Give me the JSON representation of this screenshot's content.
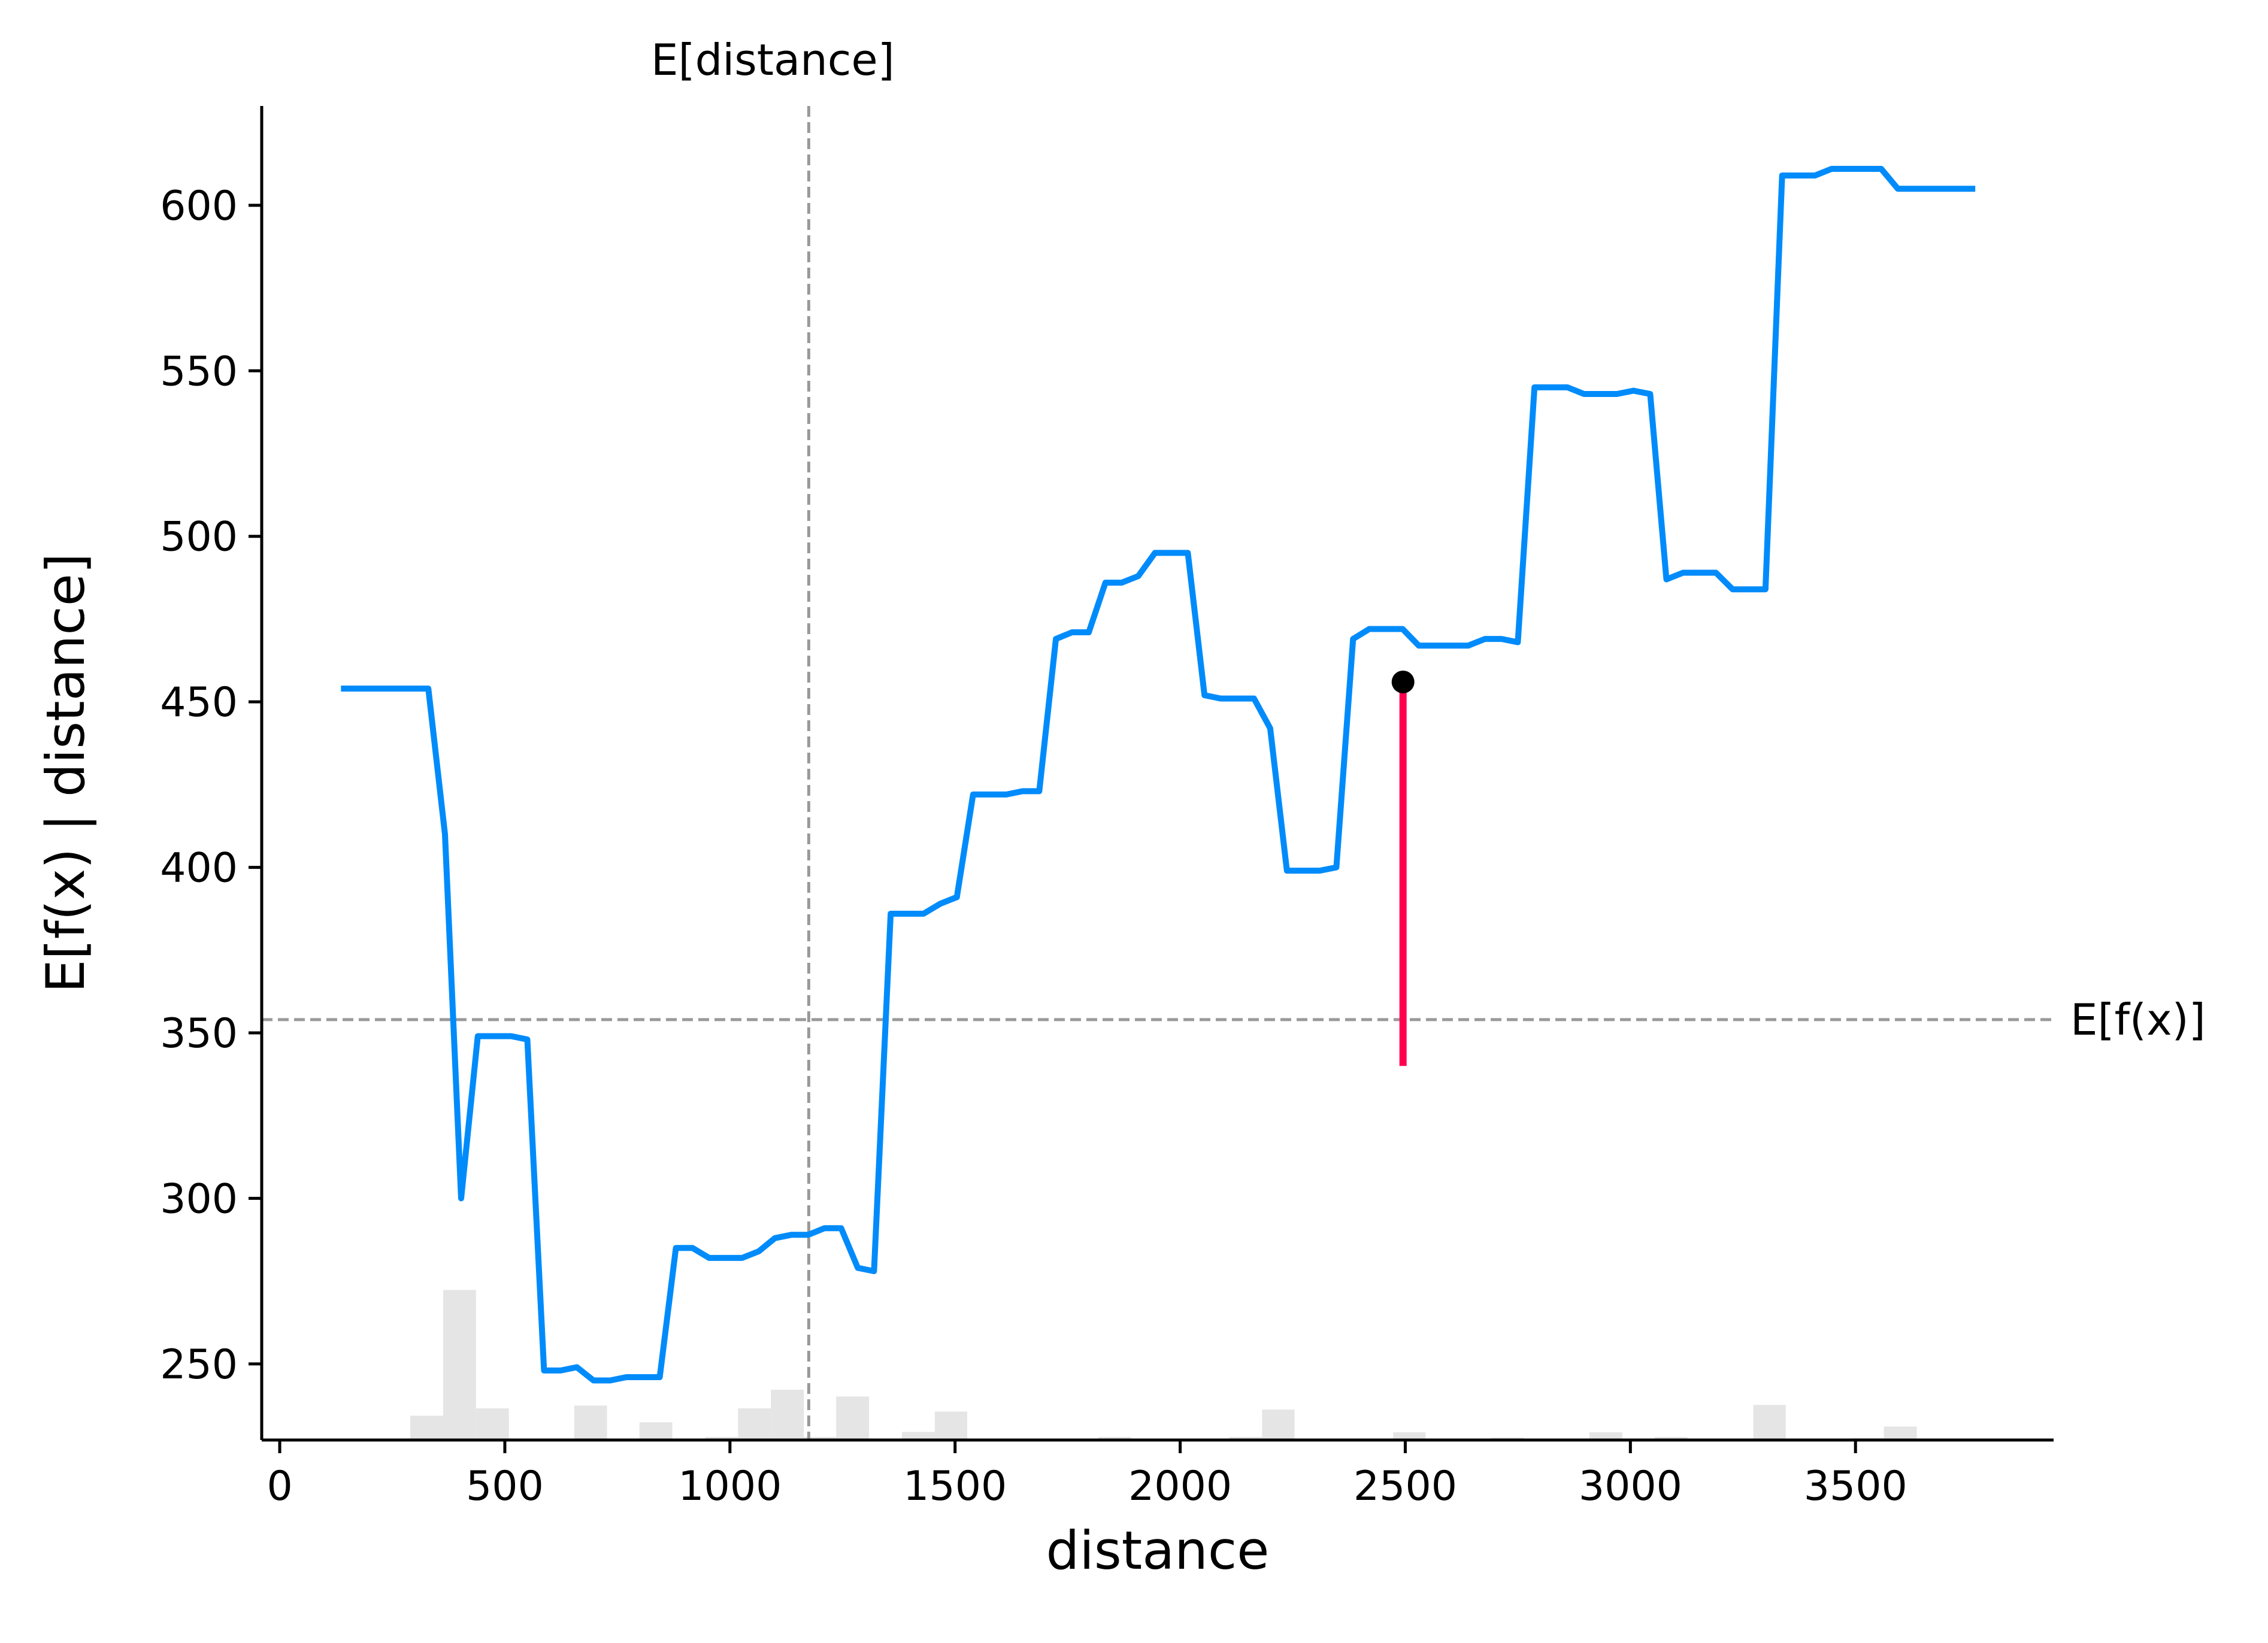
{
  "chart_data": {
    "type": "line",
    "xlabel": "distance",
    "ylabel": "E[f(x) | distance]",
    "xlim": [
      -40,
      3940
    ],
    "ylim": [
      227,
      630
    ],
    "x_ticks": [
      0,
      500,
      1000,
      1500,
      2000,
      2500,
      3000,
      3500
    ],
    "y_ticks": [
      250,
      300,
      350,
      400,
      450,
      500,
      550,
      600
    ],
    "grid": false,
    "reference_lines": {
      "expected_x": {
        "label": "E[distance]",
        "value": 1175
      },
      "expected_y": {
        "label": "E[f(x)]",
        "value": 354
      }
    },
    "series": [
      {
        "color": "#008bfb",
        "x": [
          136,
          330,
          367,
          403,
          440,
          477,
          514,
          550,
          587,
          624,
          660,
          697,
          734,
          770,
          807,
          844,
          880,
          917,
          954,
          990,
          1027,
          1064,
          1100,
          1137,
          1174,
          1210,
          1247,
          1284,
          1320,
          1357,
          1394,
          1430,
          1467,
          1504,
          1540,
          1577,
          1614,
          1650,
          1687,
          1724,
          1760,
          1797,
          1834,
          1870,
          1907,
          1944,
          1980,
          2017,
          2054,
          2090,
          2127,
          2164,
          2200,
          2237,
          2274,
          2310,
          2347,
          2384,
          2420,
          2457,
          2494,
          2530,
          2567,
          2604,
          2640,
          2677,
          2714,
          2750,
          2787,
          2824,
          2860,
          2897,
          2934,
          2970,
          3007,
          3044,
          3080,
          3117,
          3154,
          3190,
          3227,
          3264,
          3300,
          3337,
          3374,
          3410,
          3447,
          3484,
          3520,
          3557,
          3594,
          3630,
          3667,
          3704,
          3766
        ],
        "y": [
          454,
          454,
          410,
          300,
          349,
          349,
          349,
          348,
          248,
          248,
          249,
          245,
          245,
          246,
          246,
          246,
          285,
          285,
          282,
          282,
          282,
          284,
          288,
          289,
          289,
          291,
          291,
          279,
          278,
          386,
          386,
          386,
          389,
          391,
          422,
          422,
          422,
          423,
          423,
          469,
          471,
          471,
          486,
          486,
          488,
          495,
          495,
          495,
          452,
          451,
          451,
          451,
          442,
          399,
          399,
          399,
          400,
          469,
          472,
          472,
          472,
          467,
          467,
          467,
          467,
          469,
          469,
          468,
          545,
          545,
          545,
          543,
          543,
          543,
          544,
          543,
          487,
          489,
          489,
          489,
          484,
          484,
          484,
          609,
          609,
          609,
          611,
          611,
          611,
          611,
          605,
          605,
          605,
          605,
          605
        ]
      }
    ],
    "highlight_point": {
      "x": 2495,
      "y": 456,
      "color": "#000000"
    },
    "highlight_segment": {
      "x": 2495,
      "y_from": 340,
      "y_to": 456,
      "color": "#ff0051"
    },
    "histogram": {
      "color": "#e5e5e5",
      "bins": [
        {
          "x0": 290,
          "x1": 363,
          "h": 0.0182
        },
        {
          "x0": 363,
          "x1": 436,
          "h": 0.1125
        },
        {
          "x0": 436,
          "x1": 509,
          "h": 0.0237
        },
        {
          "x0": 654,
          "x1": 727,
          "h": 0.0258
        },
        {
          "x0": 799,
          "x1": 872,
          "h": 0.0133
        },
        {
          "x0": 945,
          "x1": 1018,
          "h": 0.0023
        },
        {
          "x0": 1018,
          "x1": 1091,
          "h": 0.0237
        },
        {
          "x0": 1091,
          "x1": 1164,
          "h": 0.0377
        },
        {
          "x0": 1164,
          "x1": 1236,
          "h": 0.0023
        },
        {
          "x0": 1236,
          "x1": 1309,
          "h": 0.0326
        },
        {
          "x0": 1382,
          "x1": 1455,
          "h": 0.0061
        },
        {
          "x0": 1455,
          "x1": 1527,
          "h": 0.0213
        },
        {
          "x0": 1818,
          "x1": 1891,
          "h": 0.0023
        },
        {
          "x0": 2109,
          "x1": 2182,
          "h": 0.0023
        },
        {
          "x0": 2182,
          "x1": 2254,
          "h": 0.0228
        },
        {
          "x0": 2473,
          "x1": 2545,
          "h": 0.0058
        },
        {
          "x0": 2691,
          "x1": 2763,
          "h": 0.0019
        },
        {
          "x0": 2909,
          "x1": 2982,
          "h": 0.0058
        },
        {
          "x0": 3054,
          "x1": 3127,
          "h": 0.0023
        },
        {
          "x0": 3273,
          "x1": 3345,
          "h": 0.0263
        },
        {
          "x0": 3491,
          "x1": 3563,
          "h": 0.0014
        },
        {
          "x0": 3563,
          "x1": 3636,
          "h": 0.0101
        }
      ]
    }
  }
}
